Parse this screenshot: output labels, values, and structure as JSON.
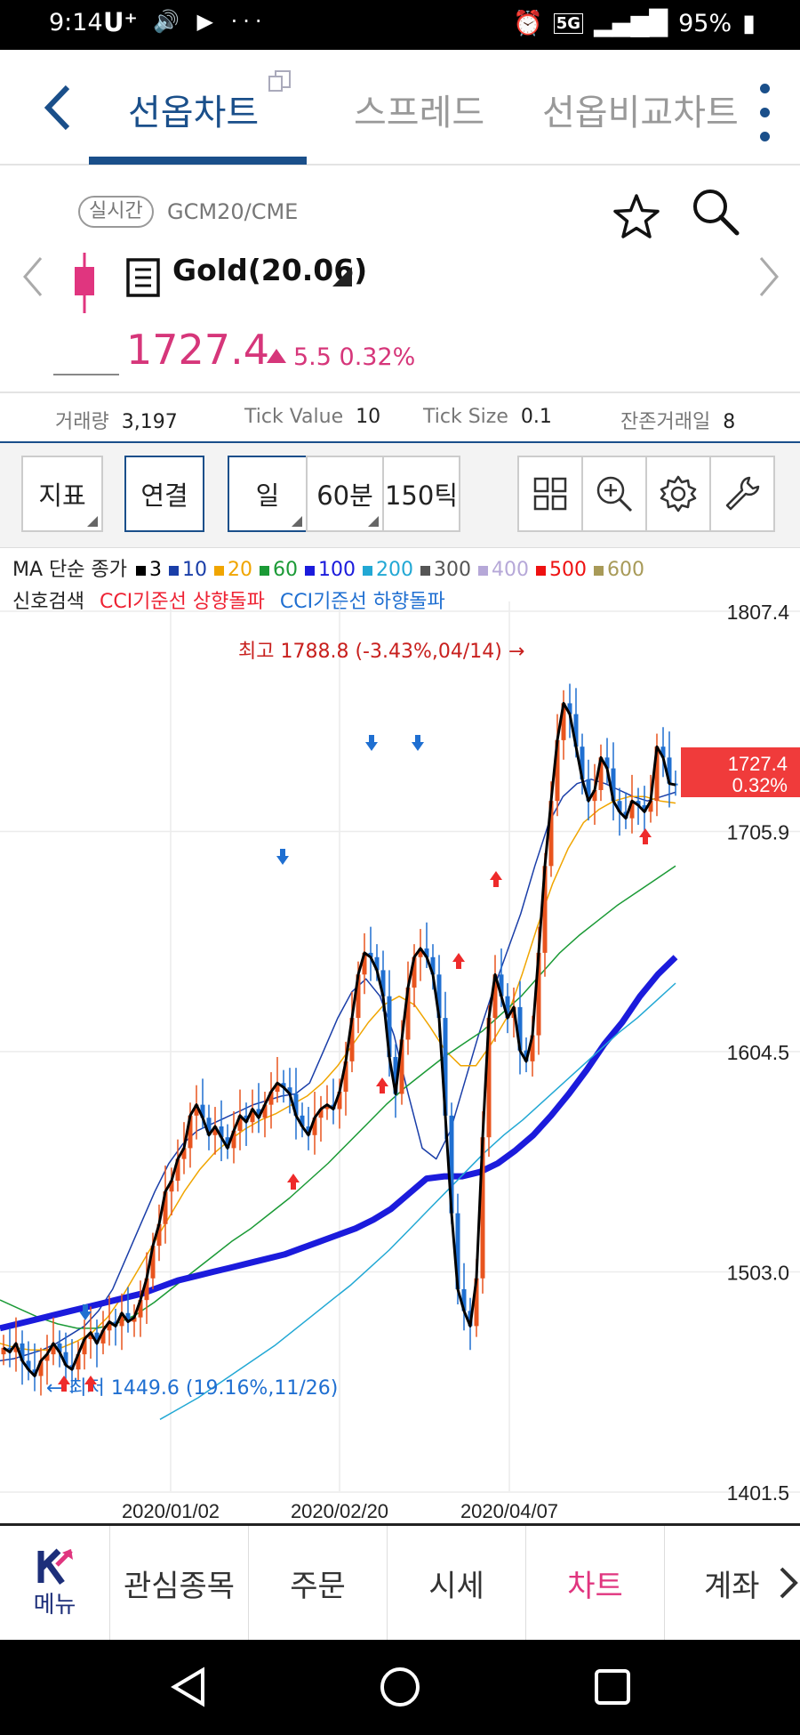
{
  "status": {
    "time": "9:14",
    "carrier": "U⁺",
    "icons": "🔊 ▶ ···",
    "network": "5G",
    "battery": "95%"
  },
  "tabs": {
    "active": "선옵차트",
    "spread": "스프레드",
    "compare": "선옵비교차트"
  },
  "quote": {
    "badge": "실시간",
    "code": "GCM20/CME",
    "name": "Gold(20.06)",
    "price": "1727.4",
    "change": "5.5",
    "change_pct": "0.32%",
    "up_color": "#d6367a"
  },
  "stats": [
    {
      "label": "거래량",
      "value": "3,197"
    },
    {
      "label": "Tick Value",
      "value": "10"
    },
    {
      "label": "Tick Size",
      "value": "0.1"
    },
    {
      "label": "잔존거래일",
      "value": "8"
    }
  ],
  "toolbar": {
    "indicator": "지표",
    "link": "연결",
    "day": "일",
    "min60": "60분",
    "tick150": "150틱"
  },
  "ma_legend": {
    "title": "MA 단순 종가",
    "items": [
      {
        "label": "3",
        "color": "#000000"
      },
      {
        "label": "10",
        "color": "#1a3ea8"
      },
      {
        "label": "20",
        "color": "#f0a500"
      },
      {
        "label": "60",
        "color": "#1b9a36"
      },
      {
        "label": "100",
        "color": "#1b1bdc"
      },
      {
        "label": "200",
        "color": "#22a8d4"
      },
      {
        "label": "300",
        "color": "#555555"
      },
      {
        "label": "400",
        "color": "#b6a8d8"
      },
      {
        "label": "500",
        "color": "#ee1111"
      },
      {
        "label": "600",
        "color": "#a89a58"
      }
    ]
  },
  "signal": {
    "label": "신호검색",
    "up": "CCI기준선 상향돌파",
    "down": "CCI기준선 하향돌파"
  },
  "chart_data": {
    "type": "candlestick",
    "x_labels": [
      "2020/01/02",
      "2020/02/20",
      "2020/04/07"
    ],
    "y_ticks": [
      1807.4,
      1705.9,
      1604.5,
      1503.0,
      1401.5
    ],
    "ylim": [
      1401.5,
      1807.4
    ],
    "current_price_tag": {
      "price": "1727.4",
      "pct": "0.32%"
    },
    "high_annotation": "최고 1788.8 (-3.43%,04/14) →",
    "low_annotation": "← 최저 1449.6 (19.16%,11/26)",
    "close_series": [
      1468,
      1466,
      1470,
      1462,
      1458,
      1455,
      1462,
      1465,
      1470,
      1466,
      1460,
      1458,
      1465,
      1472,
      1475,
      1470,
      1476,
      1480,
      1478,
      1484,
      1480,
      1482,
      1490,
      1500,
      1515,
      1525,
      1540,
      1545,
      1555,
      1560,
      1575,
      1580,
      1574,
      1566,
      1570,
      1565,
      1560,
      1568,
      1575,
      1572,
      1578,
      1574,
      1580,
      1586,
      1590,
      1588,
      1585,
      1575,
      1570,
      1566,
      1574,
      1578,
      1580,
      1578,
      1586,
      1600,
      1620,
      1640,
      1650,
      1648,
      1642,
      1630,
      1602,
      1585,
      1610,
      1634,
      1648,
      1652,
      1648,
      1640,
      1620,
      1575,
      1530,
      1495,
      1485,
      1478,
      1500,
      1565,
      1620,
      1640,
      1630,
      1620,
      1625,
      1605,
      1600,
      1612,
      1650,
      1690,
      1720,
      1748,
      1765,
      1760,
      1745,
      1730,
      1720,
      1725,
      1740,
      1735,
      1720,
      1715,
      1712,
      1720,
      1718,
      1715,
      1720,
      1745,
      1740,
      1728,
      1727.4
    ],
    "ma_series": {
      "10": [
        1462,
        1463,
        1465,
        1467,
        1470,
        1474,
        1478,
        1485,
        1495,
        1510,
        1525,
        1540,
        1553,
        1562,
        1568,
        1571,
        1574,
        1577,
        1580,
        1582,
        1584,
        1585,
        1590,
        1605,
        1620,
        1632,
        1638,
        1630,
        1612,
        1585,
        1560,
        1555,
        1568,
        1590,
        1612,
        1632,
        1650,
        1668,
        1690,
        1710,
        1722,
        1728,
        1730,
        1728,
        1725,
        1722,
        1720,
        1722,
        1724
      ],
      "20": [
        1470,
        1468,
        1467,
        1467,
        1468,
        1471,
        1475,
        1482,
        1492,
        1504,
        1516,
        1528,
        1540,
        1550,
        1558,
        1564,
        1569,
        1573,
        1576,
        1580,
        1584,
        1590,
        1598,
        1608,
        1618,
        1626,
        1630,
        1626,
        1616,
        1605,
        1598,
        1598,
        1608,
        1620,
        1640,
        1662,
        1682,
        1698,
        1710,
        1716,
        1720,
        1722,
        1722,
        1720,
        1719
      ],
      "60": [
        1490,
        1486,
        1482,
        1479,
        1477,
        1477,
        1479,
        1483,
        1489,
        1496,
        1503,
        1510,
        1517,
        1523,
        1530,
        1537,
        1545,
        1553,
        1562,
        1571,
        1580,
        1588,
        1595,
        1602,
        1608,
        1614,
        1622,
        1630,
        1640,
        1650,
        1658,
        1665,
        1672,
        1678,
        1684,
        1690
      ],
      "100": [
        1477,
        1479,
        1481,
        1483,
        1485,
        1487,
        1489,
        1491,
        1493,
        1496,
        1499,
        1501,
        1503,
        1505,
        1507,
        1509,
        1511,
        1514,
        1517,
        1520,
        1523,
        1527,
        1532,
        1539,
        1546,
        1547,
        1547,
        1549,
        1553,
        1559,
        1566,
        1575,
        1585,
        1596,
        1608,
        1618,
        1630,
        1640,
        1648
      ],
      "200": [
        1435,
        1440,
        1445,
        1451,
        1457,
        1463,
        1469,
        1476,
        1483,
        1490,
        1497,
        1505,
        1513,
        1522,
        1531,
        1540,
        1549,
        1558,
        1566,
        1573,
        1581,
        1589,
        1597,
        1605,
        1613,
        1620,
        1628,
        1636
      ]
    }
  },
  "bottom_nav": {
    "menu": "메뉴",
    "watch": "관심종목",
    "order": "주문",
    "market": "시세",
    "chart": "차트",
    "account": "계좌"
  }
}
